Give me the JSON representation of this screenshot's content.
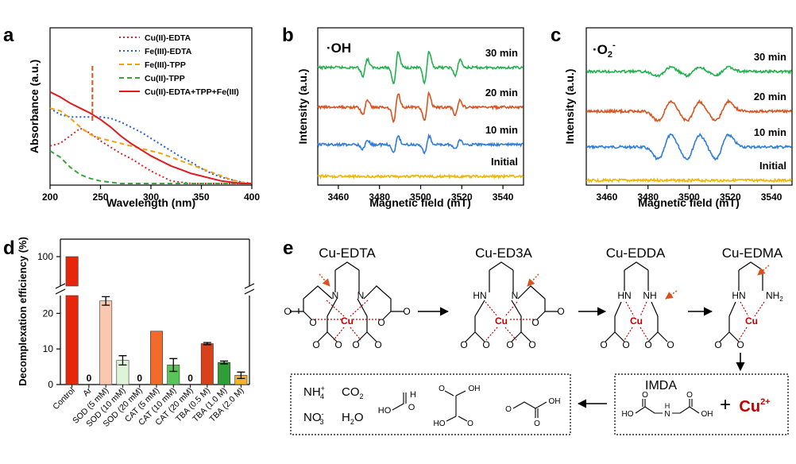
{
  "panel_labels": [
    "a",
    "b",
    "c",
    "d",
    "e"
  ],
  "chart_data": [
    {
      "id": "a",
      "type": "line",
      "xlabel": "Wavelength (nm)",
      "ylabel": "Absorbance (a.u.)",
      "xlim": [
        200,
        400
      ],
      "xticks": [
        200,
        250,
        300,
        350,
        400
      ],
      "ylim": [
        0,
        1
      ],
      "annotation": "red dashed vertical line at ~242 nm",
      "series": [
        {
          "name": "Cu(II)-EDTA",
          "color": "#d62728",
          "dash": "dot",
          "x": [
            200,
            210,
            220,
            230,
            240,
            250,
            260,
            270,
            280,
            290,
            300,
            310,
            320,
            330,
            340,
            350,
            360,
            400
          ],
          "y": [
            0.3,
            0.32,
            0.38,
            0.44,
            0.4,
            0.34,
            0.29,
            0.24,
            0.2,
            0.15,
            0.1,
            0.06,
            0.02,
            0.01,
            0.0,
            0.0,
            0.0,
            0.0
          ]
        },
        {
          "name": "Fe(III)-EDTA",
          "color": "#1f5fd6",
          "dash": "dot",
          "x": [
            200,
            210,
            220,
            230,
            240,
            250,
            260,
            270,
            280,
            290,
            300,
            310,
            320,
            330,
            340,
            350,
            360,
            370,
            380,
            390,
            400
          ],
          "y": [
            0.6,
            0.55,
            0.53,
            0.53,
            0.53,
            0.53,
            0.52,
            0.49,
            0.45,
            0.41,
            0.36,
            0.31,
            0.26,
            0.21,
            0.17,
            0.12,
            0.08,
            0.05,
            0.03,
            0.01,
            0.0
          ]
        },
        {
          "name": "Fe(III)-TPP",
          "color": "#f2a20f",
          "dash": "dash",
          "x": [
            200,
            210,
            220,
            230,
            240,
            250,
            260,
            270,
            280,
            290,
            300,
            310,
            320,
            330,
            340,
            350,
            360,
            370,
            380,
            390,
            400
          ],
          "y": [
            0.6,
            0.58,
            0.52,
            0.45,
            0.39,
            0.36,
            0.34,
            0.32,
            0.3,
            0.28,
            0.26,
            0.24,
            0.21,
            0.18,
            0.15,
            0.12,
            0.09,
            0.06,
            0.03,
            0.01,
            0.0
          ]
        },
        {
          "name": "Cu(II)-TPP",
          "color": "#3aa53a",
          "dash": "dash",
          "x": [
            200,
            210,
            220,
            230,
            240,
            250,
            260,
            270,
            280,
            300,
            320,
            350,
            400
          ],
          "y": [
            0.26,
            0.21,
            0.13,
            0.07,
            0.04,
            0.02,
            0.01,
            0.0,
            0.0,
            0.0,
            0.0,
            0.0,
            0.0
          ]
        },
        {
          "name": "Cu(II)-EDTA+TPP+Fe(III)",
          "color": "#e31a1c",
          "dash": "solid",
          "x": [
            200,
            210,
            220,
            230,
            240,
            250,
            260,
            270,
            280,
            290,
            300,
            310,
            320,
            330,
            340,
            350,
            360,
            370,
            380,
            390,
            400
          ],
          "y": [
            0.73,
            0.69,
            0.64,
            0.6,
            0.56,
            0.51,
            0.45,
            0.38,
            0.32,
            0.27,
            0.22,
            0.18,
            0.14,
            0.11,
            0.08,
            0.06,
            0.04,
            0.02,
            0.01,
            0.0,
            0.0
          ]
        }
      ]
    },
    {
      "id": "b",
      "type": "line",
      "xlabel": "Magnetic field (mT)",
      "ylabel": "Intensity (a.u.)",
      "xlim": [
        3450,
        3550
      ],
      "xticks": [
        3460,
        3480,
        3500,
        3520,
        3540
      ],
      "inset_label": "·OH",
      "series": [
        {
          "name": "30 min",
          "color": "#22b14c"
        },
        {
          "name": "20 min",
          "color": "#d9531e"
        },
        {
          "name": "10 min",
          "color": "#2e7cdb"
        },
        {
          "name": "Initial",
          "color": "#f4b400"
        }
      ],
      "peaks_mT": [
        3473,
        3488,
        3503,
        3518
      ],
      "peak_amplitude": {
        "30 min": 1.0,
        "20 min": 0.9,
        "10 min": 0.55,
        "Initial": 0.0
      }
    },
    {
      "id": "c",
      "type": "line",
      "xlabel": "Magnetic field (mT)",
      "ylabel": "Intensity (a.u.)",
      "xlim": [
        3450,
        3550
      ],
      "xticks": [
        3460,
        3480,
        3500,
        3520,
        3540
      ],
      "inset_label_base": "·O",
      "inset_label_sub": "2",
      "inset_label_sup": "-",
      "series": [
        {
          "name": "30 min",
          "color": "#22b14c"
        },
        {
          "name": "20 min",
          "color": "#d9531e"
        },
        {
          "name": "10 min",
          "color": "#2e7cdb"
        },
        {
          "name": "Initial",
          "color": "#f4b400"
        }
      ],
      "peaks_mT": [
        3488,
        3502,
        3516
      ],
      "peak_amplitude": {
        "30 min": 0.35,
        "20 min": 0.8,
        "10 min": 1.0,
        "Initial": 0.0
      }
    },
    {
      "id": "d",
      "type": "bar",
      "ylabel": "Decomplexation efficiency (%)",
      "ylim_lower": [
        0,
        25
      ],
      "ylim_upper_tick": 100,
      "yticks": [
        0,
        10,
        20,
        100
      ],
      "categories": [
        "Control",
        "Ar",
        "SOD (5 mM)",
        "SOD (10 mM)",
        "SOD (20 mM)",
        "CAT (5 mM)",
        "CAT (10 mM)",
        "CAT (20 mM)",
        "TBA (0.5 M)",
        "TBA (1.0 M)",
        "TBA (2.0 M)"
      ],
      "values": [
        100,
        0,
        23.5,
        6.8,
        0,
        15.0,
        5.5,
        0,
        11.5,
        6.2,
        2.6
      ],
      "errors": [
        0,
        0,
        1.2,
        1.3,
        0,
        0,
        1.8,
        0,
        0.3,
        0.4,
        0.9
      ],
      "zero_labels": [
        "0",
        "0",
        "0"
      ],
      "colors": [
        "#e8260c",
        "#e8260c",
        "#f8c9ae",
        "#dff3d7",
        "#dff3d7",
        "#f26a2c",
        "#5cc25a",
        "#5cc25a",
        "#d9411a",
        "#2f9e38",
        "#f4b32a"
      ]
    }
  ],
  "panel_e": {
    "names": [
      "Cu-EDTA",
      "Cu-ED3A",
      "Cu-EDDA",
      "Cu-EDMA"
    ],
    "atoms": {
      "cu": "Cu",
      "n": "N",
      "hn": "HN",
      "nh": "NH",
      "nh2": "NH",
      "nh2_sub": "2",
      "o": "O"
    },
    "imda_label": "IMDA",
    "plus": "+",
    "cu_ion": "Cu",
    "cu_ion_charge": "2+",
    "products_row1": [
      "NH",
      "+",
      "CO",
      "2"
    ],
    "products_row2": [
      "NO",
      "-",
      "H",
      "O"
    ],
    "prod_sub_nh4": "4",
    "prod_sub_no3": "3",
    "prod_sub_h2o": "2",
    "small_atoms": {
      "oh": "OH",
      "ho": "HO",
      "h": "H",
      "o": "O"
    }
  }
}
